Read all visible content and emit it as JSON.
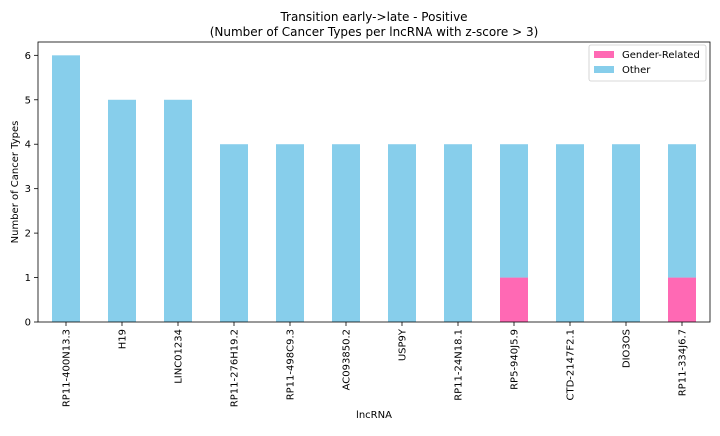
{
  "chart_data": {
    "type": "bar",
    "stacked": true,
    "title": "Transition early->late - Positive",
    "subtitle": "(Number of Cancer Types per lncRNA with z-score > 3)",
    "xlabel": "lncRNA",
    "ylabel": "Number of Cancer Types",
    "ylim": [
      0,
      6.3
    ],
    "yticks": [
      0,
      1,
      2,
      3,
      4,
      5,
      6
    ],
    "categories": [
      "RP11-400N13.3",
      "H19",
      "LINC01234",
      "RP11-276H19.2",
      "RP11-498C9.3",
      "AC093850.2",
      "USP9Y",
      "RP11-24N18.1",
      "RP5-940J5.9",
      "CTD-2147F2.1",
      "DIO3OS",
      "RP11-334J6.7"
    ],
    "series": [
      {
        "name": "Gender-Related",
        "color": "#ff69b4",
        "values": [
          0,
          0,
          0,
          0,
          0,
          0,
          0,
          0,
          1,
          0,
          0,
          1
        ]
      },
      {
        "name": "Other",
        "color": "#87ceeb",
        "values": [
          6,
          5,
          5,
          4,
          4,
          4,
          4,
          4,
          3,
          4,
          4,
          3
        ]
      }
    ],
    "legend_position": "top-right",
    "grid": false
  }
}
